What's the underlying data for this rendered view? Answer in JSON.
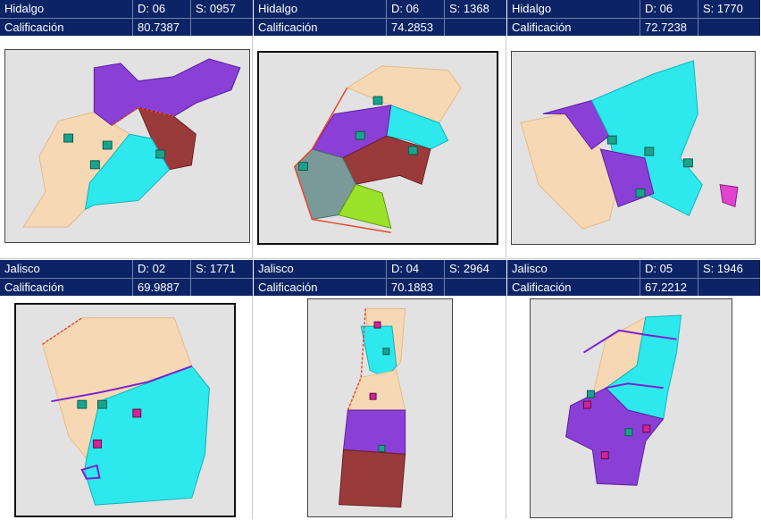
{
  "panels": [
    {
      "state": "Hidalgo",
      "district": "D: 06",
      "section": "S: 0957",
      "score_label": "Calificación",
      "score": "80.7387"
    },
    {
      "state": "Hidalgo",
      "district": "D: 06",
      "section": "S: 1368",
      "score_label": "Calificación",
      "score": "74.2853"
    },
    {
      "state": "Hidalgo",
      "district": "D: 06",
      "section": "S: 1770",
      "score_label": "Calificación",
      "score": "72.7238"
    },
    {
      "state": "Jalisco",
      "district": "D: 02",
      "section": "S: 1771",
      "score_label": "Calificación",
      "score": "69.9887"
    },
    {
      "state": "Jalisco",
      "district": "D: 04",
      "section": "S: 2964",
      "score_label": "Calificación",
      "score": "70.1883"
    },
    {
      "state": "Jalisco",
      "district": "D: 05",
      "section": "S: 1946",
      "score_label": "Calificación",
      "score": "67.2212"
    }
  ],
  "colors": {
    "header_bg": "#0c2466",
    "header_text": "#ffffff",
    "map_bg": "#e2e2e2",
    "zone_beige": "#f6d8b4",
    "zone_cyan": "#2de8ec",
    "zone_purple": "#8a3fd6",
    "zone_maroon": "#9b3a3a",
    "zone_lime": "#9be22a",
    "zone_grey": "#7a9a9a",
    "boundary_red": "#e8452c",
    "boundary_purple": "#7d1fd0",
    "marker_teal": "#1aa38c",
    "marker_magenta": "#d1239a"
  },
  "icons": {
    "school_marker": "school-marker-icon",
    "campus_marker": "campus-marker-icon"
  }
}
